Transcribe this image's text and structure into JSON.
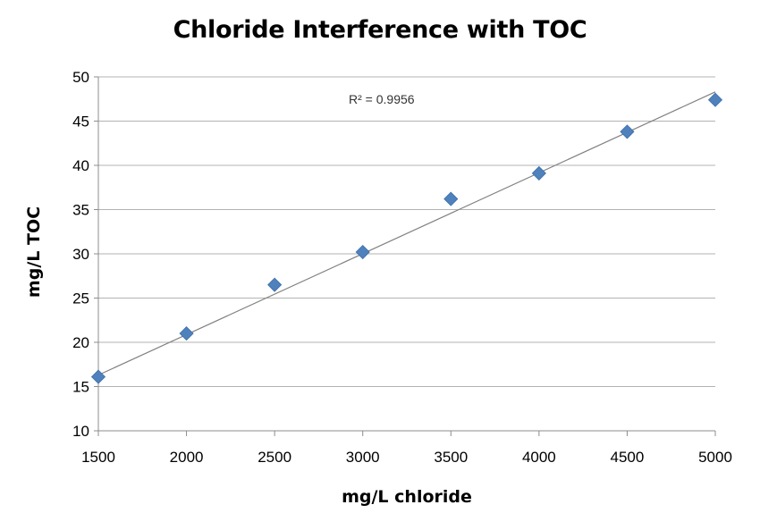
{
  "chart_data": {
    "type": "scatter",
    "title": "Chloride Interference with TOC",
    "xlabel": "mg/L chloride",
    "ylabel": "mg/L TOC",
    "xlim": [
      1500,
      5000
    ],
    "ylim": [
      10,
      50
    ],
    "x_ticks": [
      "1500",
      "2000",
      "2500",
      "3000",
      "3500",
      "4000",
      "4500",
      "5000"
    ],
    "y_ticks": [
      "10",
      "15",
      "20",
      "25",
      "30",
      "35",
      "40",
      "45",
      "50"
    ],
    "grid": "horizontal",
    "legend": "none",
    "series": [
      {
        "marker": "diamond",
        "color": "#4F81BD",
        "x": [
          1500,
          2000,
          2500,
          3000,
          3500,
          4000,
          4500,
          5000
        ],
        "y": [
          16.1,
          21.0,
          26.5,
          30.2,
          36.2,
          39.1,
          43.8,
          47.4
        ]
      }
    ],
    "trendline": {
      "type": "linear",
      "color": "#808080",
      "x": [
        1500,
        5000
      ],
      "y": [
        16.3,
        48.3
      ],
      "annotation": "R² = 0.9956"
    }
  }
}
